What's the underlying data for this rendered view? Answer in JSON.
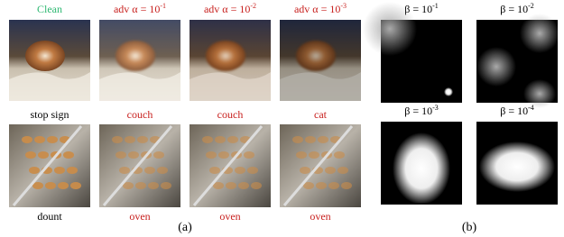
{
  "panel_a": {
    "column_titles": [
      {
        "text": "Clean"
      },
      {
        "prefix": "adv α = 10",
        "exponent": "-1"
      },
      {
        "prefix": "adv α = 10",
        "exponent": "-2"
      },
      {
        "prefix": "adv α = 10",
        "exponent": "-3"
      }
    ],
    "row_1_predictions": [
      "stop sign",
      "couch",
      "couch",
      "cat"
    ],
    "row_2_predictions": [
      "dount",
      "oven",
      "oven",
      "oven"
    ],
    "caption": "(a)"
  },
  "panel_b": {
    "titles": [
      {
        "prefix": "β = 10",
        "exponent": "-1"
      },
      {
        "prefix": "β = 10",
        "exponent": "-2"
      },
      {
        "prefix": "β = 10",
        "exponent": "-3"
      },
      {
        "prefix": "β = 10",
        "exponent": "-4"
      }
    ],
    "caption": "(b)"
  }
}
